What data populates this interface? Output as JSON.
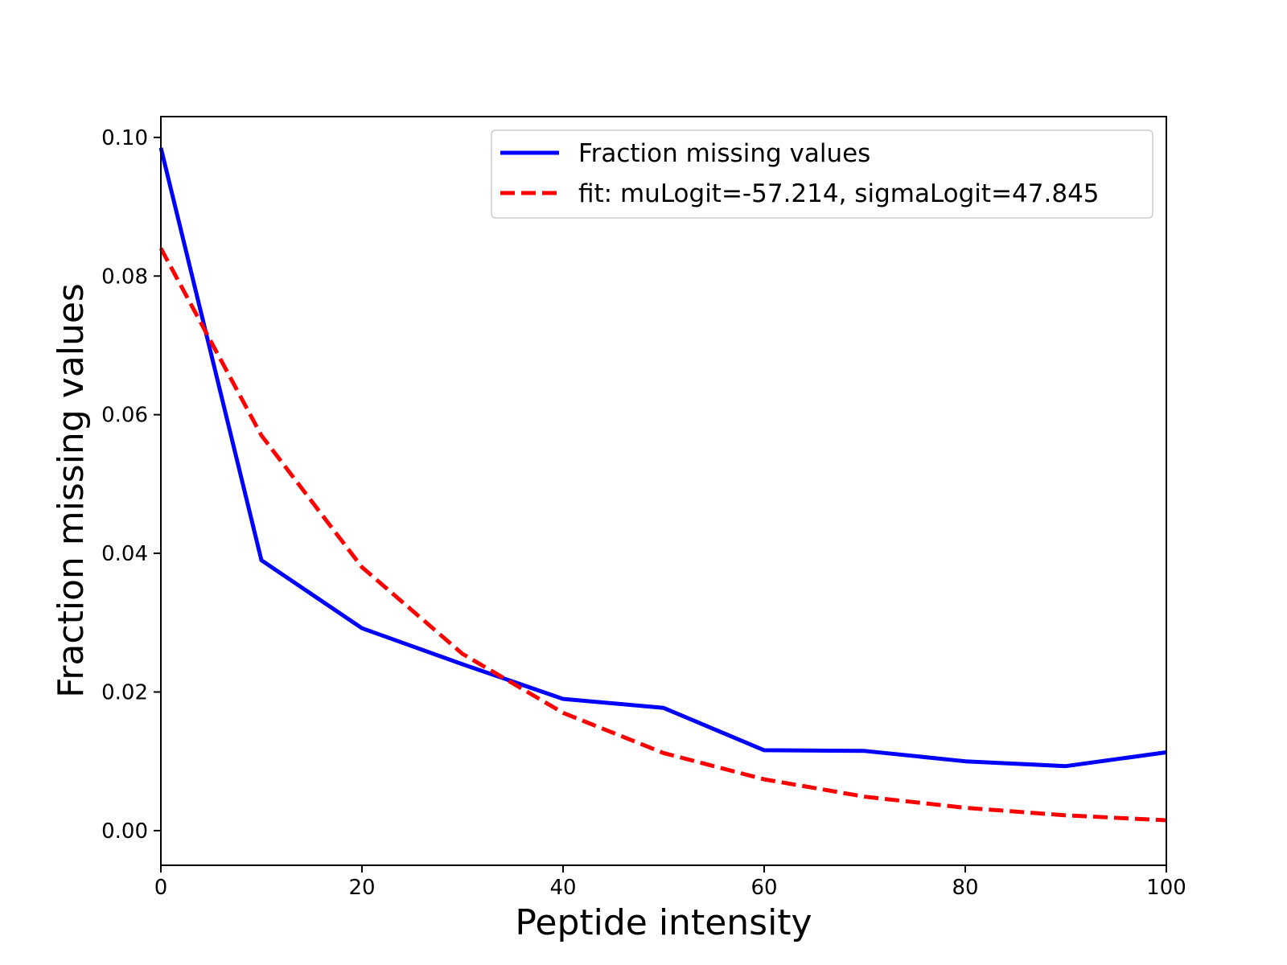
{
  "chart_data": {
    "type": "line",
    "xlabel": "Peptide intensity",
    "ylabel": "Fraction missing values",
    "xlim": [
      0,
      100
    ],
    "ylim": [
      -0.005,
      0.103
    ],
    "xticks": [
      0,
      20,
      40,
      60,
      80,
      100
    ],
    "yticks": [
      0.0,
      0.02,
      0.04,
      0.06,
      0.08,
      0.1
    ],
    "xtick_labels": [
      "0",
      "20",
      "40",
      "60",
      "80",
      "100"
    ],
    "ytick_labels": [
      "0.00",
      "0.02",
      "0.04",
      "0.06",
      "0.08",
      "0.10"
    ],
    "grid": false,
    "legend_position": "top-right",
    "series": [
      {
        "name": "Fraction missing values",
        "color": "#0000ff",
        "style": "solid",
        "x": [
          0,
          10,
          20,
          30,
          40,
          50,
          60,
          70,
          80,
          90,
          100
        ],
        "y": [
          0.0985,
          0.039,
          0.0292,
          0.024,
          0.019,
          0.0177,
          0.0116,
          0.0115,
          0.01,
          0.0093,
          0.0113
        ]
      },
      {
        "name": "fit: muLogit=-57.214, sigmaLogit=47.845",
        "color": "#ff0000",
        "style": "dashed",
        "x": [
          0,
          10,
          20,
          30,
          40,
          50,
          60,
          70,
          80,
          90,
          100
        ],
        "y": [
          0.084,
          0.057,
          0.038,
          0.0255,
          0.017,
          0.0112,
          0.0074,
          0.0049,
          0.0033,
          0.0022,
          0.0015
        ]
      }
    ]
  }
}
